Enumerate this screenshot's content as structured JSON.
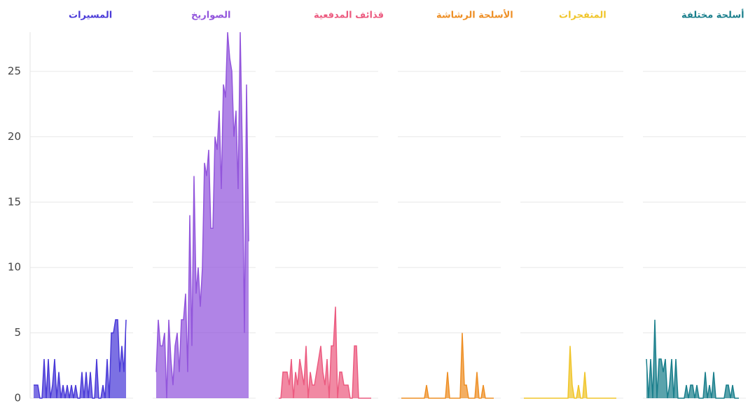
{
  "chart_data": {
    "type": "area",
    "ylim": [
      0,
      28
    ],
    "yticks": [
      0,
      5,
      10,
      15,
      20,
      25
    ],
    "grid": true,
    "series": [
      {
        "name": "المسيرات",
        "color": "#4a3ad8",
        "values": [
          1,
          1,
          1,
          0,
          0,
          3,
          0,
          3,
          0,
          1,
          3,
          0,
          2,
          0,
          1,
          0,
          1,
          0,
          1,
          0,
          1,
          0,
          0,
          2,
          0,
          2,
          0,
          2,
          0,
          0,
          3,
          0,
          0,
          1,
          0,
          3,
          0,
          5,
          5,
          6,
          6,
          2,
          4,
          2,
          6
        ]
      },
      {
        "name": "الصواريخ",
        "color": "#9255dc",
        "values": [
          2,
          6,
          4,
          4,
          5,
          0,
          6,
          3,
          1,
          4,
          5,
          2,
          6,
          6,
          8,
          2,
          14,
          4,
          17,
          8,
          10,
          7,
          10,
          18,
          17,
          19,
          13,
          13,
          20,
          19,
          22,
          16,
          24,
          23,
          28,
          26,
          25,
          20,
          22,
          16,
          28,
          19,
          5,
          24,
          12
        ]
      },
      {
        "name": "قذائف المدفعية",
        "color": "#ec5b80",
        "values": [
          0,
          0,
          2,
          2,
          2,
          1,
          3,
          0,
          2,
          1,
          3,
          2,
          1,
          4,
          0,
          2,
          1,
          1,
          2,
          3,
          4,
          2,
          1,
          3,
          0,
          4,
          4,
          7,
          0,
          2,
          2,
          1,
          1,
          1,
          0,
          0,
          4,
          4,
          0,
          0,
          0,
          0,
          0,
          0,
          0
        ]
      },
      {
        "name": "الأسلحة الرشاشة",
        "color": "#ee8f25",
        "values": [
          0,
          0,
          0,
          0,
          0,
          0,
          0,
          0,
          0,
          0,
          0,
          0,
          1,
          0,
          0,
          0,
          0,
          0,
          0,
          0,
          0,
          0,
          2,
          0,
          0,
          0,
          0,
          0,
          0,
          5,
          1,
          1,
          0,
          0,
          0,
          0,
          2,
          0,
          0,
          1,
          0,
          0,
          0,
          0,
          0
        ]
      },
      {
        "name": "المتفجرات",
        "color": "#f0c52a",
        "values": [
          0,
          0,
          0,
          0,
          0,
          0,
          0,
          0,
          0,
          0,
          0,
          0,
          0,
          0,
          0,
          0,
          0,
          0,
          0,
          0,
          0,
          0,
          4,
          1,
          0,
          0,
          1,
          0,
          0,
          2,
          0,
          0,
          0,
          0,
          0,
          0,
          0,
          0,
          0,
          0,
          0,
          0,
          0,
          0,
          0
        ]
      },
      {
        "name": "أسلحة مختلفة",
        "color": "#1a7f8c",
        "values": [
          3,
          0,
          3,
          0,
          6,
          0,
          3,
          3,
          2,
          3,
          0,
          1,
          3,
          0,
          3,
          0,
          0,
          0,
          0,
          1,
          0,
          1,
          1,
          0,
          1,
          0,
          0,
          0,
          2,
          0,
          1,
          0,
          2,
          0,
          0,
          0,
          0,
          0,
          1,
          1,
          0,
          1,
          0,
          0,
          0
        ]
      }
    ]
  }
}
